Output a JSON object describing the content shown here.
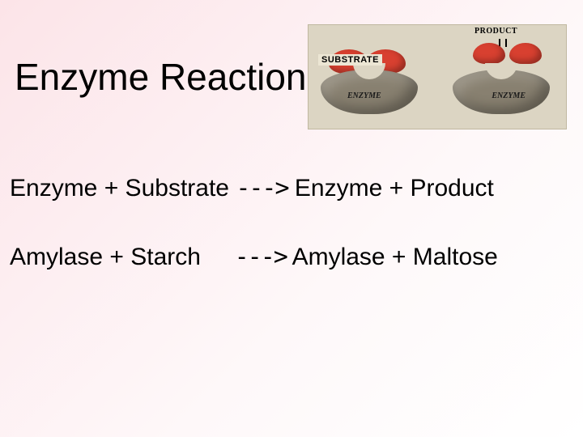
{
  "title": "Enzyme Reaction",
  "diagram": {
    "product_label": "PRODUCT",
    "substrate_label": "SUBSTRATE",
    "enzyme_label_left": "ENZYME",
    "enzyme_label_right": "ENZYME",
    "colors": {
      "background": "#dcd5c3",
      "enzyme_fill": "#888070",
      "substrate_fill": "#d84030"
    }
  },
  "equations": {
    "line1": {
      "left": "Enzyme + Substrate",
      "arrow": "--->",
      "right": "Enzyme + Product"
    },
    "line2": {
      "left": "Amylase +  Starch",
      "arrow": "--->",
      "right": "Amylase + Maltose"
    }
  },
  "style": {
    "title_fontsize": 46,
    "equation_fontsize": 30,
    "font_family": "Comic Sans MS",
    "gradient_start": "#fce4e8",
    "gradient_end": "#ffffff"
  }
}
